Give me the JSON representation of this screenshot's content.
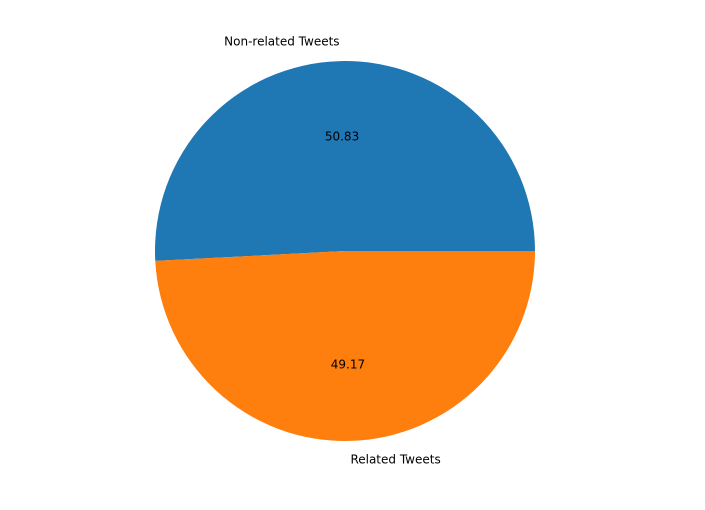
{
  "chart_data": {
    "type": "pie",
    "slices": [
      {
        "label": "Non-related Tweets",
        "value": 50.83,
        "pct_text": "50.83",
        "color": "#1f77b4"
      },
      {
        "label": "Related Tweets",
        "value": 49.17,
        "pct_text": "49.17",
        "color": "#ff7f0e"
      }
    ],
    "start_angle_deg": 0,
    "direction": "counterclockwise",
    "legend": "none"
  }
}
